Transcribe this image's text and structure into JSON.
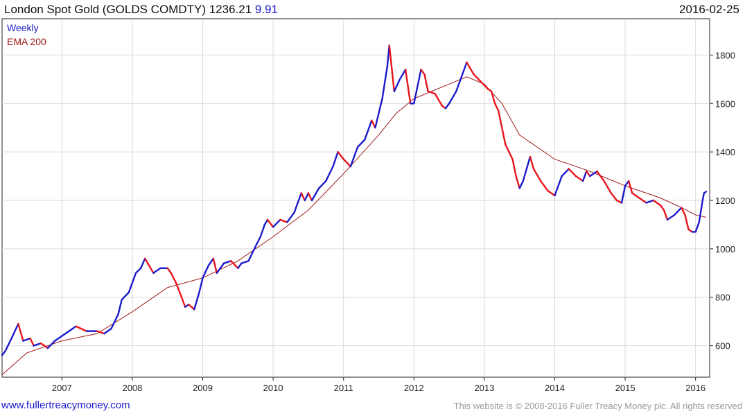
{
  "header": {
    "title": "London Spot Gold (GOLDS COMDTY) 1236.21",
    "change": "9.91",
    "date": "2016-02-25"
  },
  "footer": {
    "site": "www.fullertreacymoney.com",
    "copyright": "This website is © 2008-2016 Fuller Treacy Money plc. All rights reserved"
  },
  "colors": {
    "up": "#1a1acc",
    "down": "#e8141c",
    "ema": "#a01818",
    "grid": "#d9d9d9",
    "axis": "#222222"
  },
  "chart_data": {
    "type": "line",
    "legend": [
      "Weekly",
      "EMA 200"
    ],
    "legend_placement": "top-left",
    "x_tick_labels": [
      "2007",
      "2008",
      "2009",
      "2010",
      "2011",
      "2012",
      "2013",
      "2014",
      "2015",
      "2016"
    ],
    "x_range": [
      2006.15,
      2016.2
    ],
    "y_tick_labels": [
      "600",
      "800",
      "1000",
      "1200",
      "1400",
      "1600",
      "1800"
    ],
    "ylim": [
      470,
      1950
    ],
    "grid": true,
    "series": [
      {
        "name": "Weekly",
        "x": [
          2006.15,
          2006.2,
          2006.3,
          2006.38,
          2006.45,
          2006.55,
          2006.6,
          2006.7,
          2006.8,
          2006.9,
          2007.0,
          2007.1,
          2007.2,
          2007.35,
          2007.5,
          2007.6,
          2007.7,
          2007.8,
          2007.85,
          2007.95,
          2008.05,
          2008.12,
          2008.18,
          2008.22,
          2008.3,
          2008.4,
          2008.5,
          2008.55,
          2008.62,
          2008.7,
          2008.75,
          2008.8,
          2008.88,
          2008.95,
          2009.0,
          2009.08,
          2009.15,
          2009.2,
          2009.3,
          2009.4,
          2009.5,
          2009.55,
          2009.65,
          2009.75,
          2009.82,
          2009.88,
          2009.92,
          2010.0,
          2010.1,
          2010.2,
          2010.3,
          2010.4,
          2010.45,
          2010.5,
          2010.55,
          2010.65,
          2010.75,
          2010.85,
          2010.92,
          2011.0,
          2011.1,
          2011.2,
          2011.3,
          2011.4,
          2011.45,
          2011.5,
          2011.55,
          2011.62,
          2011.65,
          2011.72,
          2011.8,
          2011.88,
          2011.95,
          2012.0,
          2012.05,
          2012.1,
          2012.15,
          2012.2,
          2012.3,
          2012.4,
          2012.45,
          2012.5,
          2012.6,
          2012.7,
          2012.75,
          2012.85,
          2012.95,
          2013.05,
          2013.1,
          2013.15,
          2013.2,
          2013.3,
          2013.35,
          2013.4,
          2013.45,
          2013.5,
          2013.55,
          2013.6,
          2013.65,
          2013.7,
          2013.8,
          2013.9,
          2014.0,
          2014.1,
          2014.2,
          2014.3,
          2014.4,
          2014.45,
          2014.5,
          2014.6,
          2014.7,
          2014.8,
          2014.88,
          2014.95,
          2015.0,
          2015.05,
          2015.1,
          2015.2,
          2015.3,
          2015.4,
          2015.5,
          2015.55,
          2015.6,
          2015.7,
          2015.8,
          2015.85,
          2015.9,
          2015.95,
          2016.0,
          2016.05,
          2016.1,
          2016.12,
          2016.15
        ],
        "values": [
          560,
          580,
          640,
          690,
          620,
          630,
          600,
          610,
          590,
          620,
          640,
          660,
          680,
          660,
          660,
          650,
          670,
          730,
          790,
          820,
          900,
          920,
          960,
          940,
          900,
          920,
          920,
          900,
          860,
          800,
          760,
          770,
          750,
          820,
          880,
          930,
          960,
          900,
          940,
          950,
          920,
          940,
          950,
          1010,
          1050,
          1100,
          1120,
          1090,
          1120,
          1110,
          1150,
          1230,
          1200,
          1230,
          1200,
          1250,
          1280,
          1340,
          1400,
          1370,
          1340,
          1420,
          1450,
          1530,
          1500,
          1560,
          1620,
          1750,
          1840,
          1650,
          1700,
          1740,
          1600,
          1600,
          1670,
          1740,
          1720,
          1650,
          1640,
          1590,
          1580,
          1600,
          1650,
          1730,
          1770,
          1720,
          1690,
          1660,
          1650,
          1600,
          1570,
          1430,
          1400,
          1370,
          1300,
          1250,
          1280,
          1330,
          1380,
          1330,
          1280,
          1240,
          1220,
          1300,
          1330,
          1300,
          1280,
          1320,
          1300,
          1320,
          1280,
          1230,
          1200,
          1190,
          1260,
          1280,
          1230,
          1210,
          1190,
          1200,
          1180,
          1160,
          1120,
          1140,
          1170,
          1140,
          1080,
          1070,
          1070,
          1110,
          1200,
          1230,
          1236
        ]
      },
      {
        "name": "EMA 200",
        "x": [
          2006.15,
          2006.5,
          2007.0,
          2007.5,
          2008.0,
          2008.5,
          2009.0,
          2009.5,
          2010.0,
          2010.5,
          2011.0,
          2011.5,
          2011.75,
          2012.0,
          2012.5,
          2012.75,
          2013.0,
          2013.25,
          2013.5,
          2014.0,
          2014.5,
          2015.0,
          2015.5,
          2015.8,
          2016.0,
          2016.15
        ],
        "values": [
          480,
          570,
          620,
          650,
          740,
          840,
          880,
          950,
          1050,
          1160,
          1310,
          1470,
          1560,
          1620,
          1680,
          1710,
          1680,
          1600,
          1470,
          1370,
          1320,
          1260,
          1210,
          1170,
          1140,
          1130
        ]
      }
    ]
  }
}
